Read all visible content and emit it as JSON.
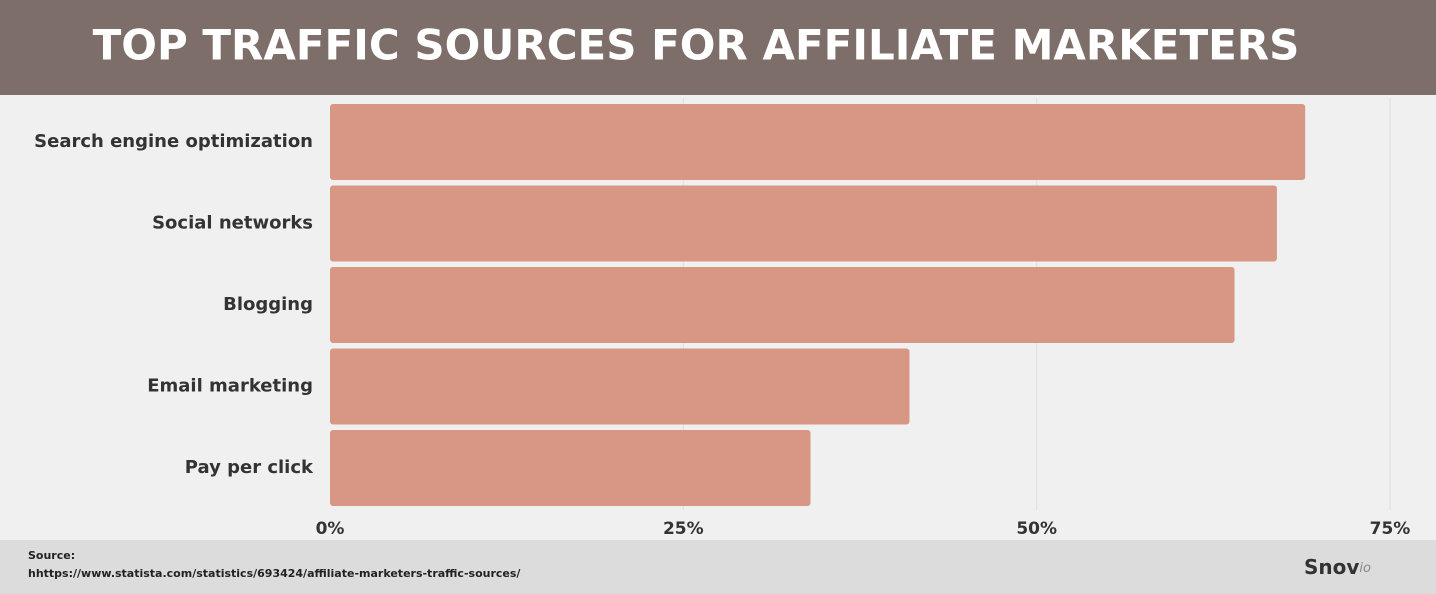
{
  "chart_data": {
    "type": "bar",
    "orientation": "horizontal",
    "title": "TOP TRAFFIC SOURCES FOR AFFILIATE MARKETERS",
    "categories": [
      "Search engine optimization",
      "Social networks",
      "Blogging",
      "Email marketing",
      "Pay per click"
    ],
    "values": [
      69,
      67,
      64,
      41,
      34
    ],
    "color": "#d89684",
    "xlim": [
      0,
      75
    ],
    "xticks": [
      {
        "value": 0,
        "label": "0%"
      },
      {
        "value": 25,
        "label": "25%"
      },
      {
        "value": 50,
        "label": "50%"
      },
      {
        "value": 75,
        "label": "75%"
      }
    ],
    "grid": true,
    "source_label": "Source:",
    "source_url": "hhttps://www.statista.com/statistics/693424/affiliate-marketers-traffic-sources/",
    "logo": "Snov",
    "logo_suffix": "io"
  }
}
